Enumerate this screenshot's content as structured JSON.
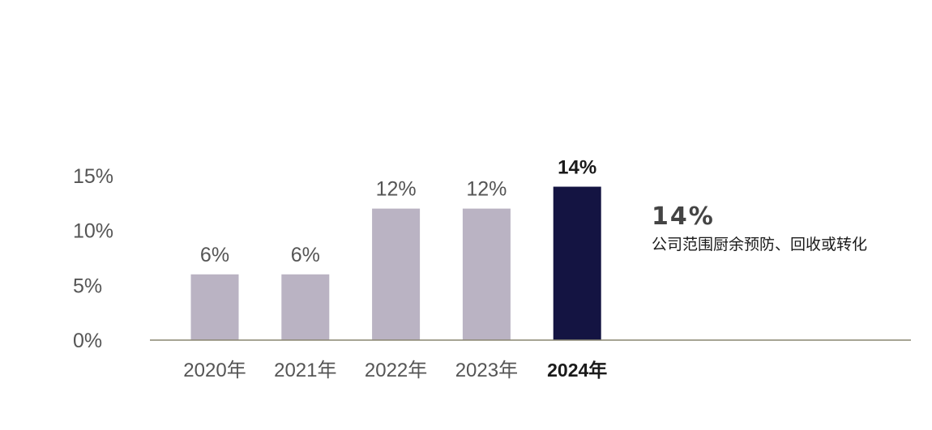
{
  "chart_data": {
    "type": "bar",
    "categories": [
      "2020年",
      "2021年",
      "2022年",
      "2023年",
      "2024年"
    ],
    "values": [
      6,
      6,
      12,
      12,
      14
    ],
    "value_labels": [
      "6%",
      "6%",
      "12%",
      "12%",
      "14%"
    ],
    "highlight_index": 4,
    "y_ticks": [
      "0%",
      "5%",
      "10%",
      "15%"
    ],
    "ylim": [
      0,
      15
    ],
    "grid": false,
    "title": "",
    "xlabel": "",
    "ylabel": ""
  },
  "callout": {
    "value": "14%",
    "text": "公司范围厨余预防、回收或转化"
  },
  "colors": {
    "bar": "#bab3c3",
    "highlight": "#141442",
    "axis": "#8a8670",
    "label": "#555555",
    "highlight_label": "#1a1a1a",
    "callout_value": "#444444"
  }
}
